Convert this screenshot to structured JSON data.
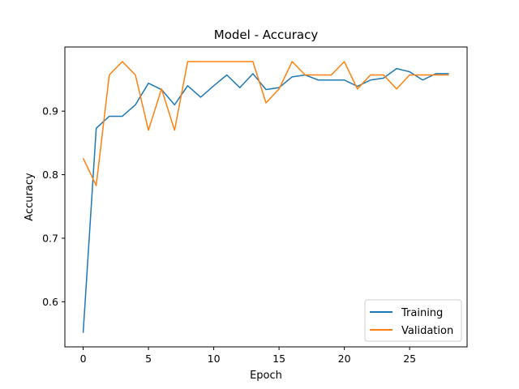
{
  "chart_data": {
    "type": "line",
    "title": "Model - Accuracy",
    "xlabel": "Epoch",
    "ylabel": "Accuracy",
    "xlim": [
      -1.4,
      29.4
    ],
    "ylim": [
      0.529,
      1.001
    ],
    "xticks": [
      0,
      5,
      10,
      15,
      20,
      25
    ],
    "xtick_labels": [
      "0",
      "5",
      "10",
      "15",
      "20",
      "25"
    ],
    "yticks": [
      0.6,
      0.7,
      0.8,
      0.9
    ],
    "ytick_labels": [
      "0.6",
      "0.7",
      "0.8",
      "0.9"
    ],
    "grid": false,
    "legend_position": "lower-right",
    "x": [
      0,
      1,
      2,
      3,
      4,
      5,
      6,
      7,
      8,
      9,
      10,
      11,
      12,
      13,
      14,
      15,
      16,
      17,
      18,
      19,
      20,
      21,
      22,
      23,
      24,
      25,
      26,
      27,
      28
    ],
    "series": [
      {
        "name": "Training",
        "color": "#1f77b4",
        "values": [
          0.551,
          0.873,
          0.892,
          0.892,
          0.91,
          0.944,
          0.934,
          0.91,
          0.94,
          0.922,
          0.94,
          0.957,
          0.937,
          0.959,
          0.934,
          0.937,
          0.954,
          0.957,
          0.949,
          0.949,
          0.949,
          0.939,
          0.949,
          0.952,
          0.967,
          0.962,
          0.949,
          0.959,
          0.959
        ]
      },
      {
        "name": "Validation",
        "color": "#ff7f0e",
        "values": [
          0.826,
          0.783,
          0.957,
          0.978,
          0.957,
          0.87,
          0.935,
          0.87,
          0.978,
          0.978,
          0.978,
          0.978,
          0.978,
          0.978,
          0.913,
          0.935,
          0.978,
          0.957,
          0.957,
          0.957,
          0.978,
          0.935,
          0.957,
          0.957,
          0.935,
          0.957,
          0.957,
          0.957,
          0.957
        ]
      }
    ]
  }
}
